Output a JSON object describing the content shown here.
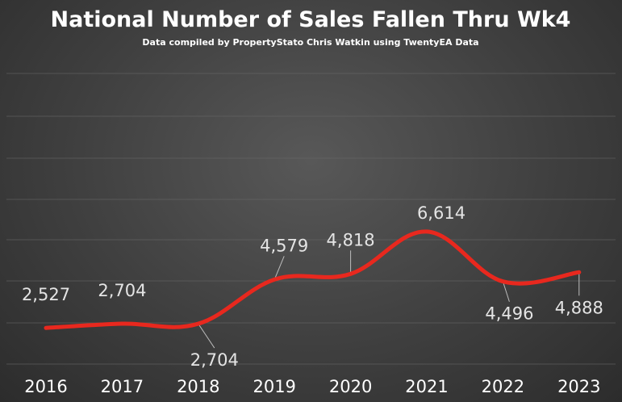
{
  "colors": {
    "line": "#e8281e",
    "text": "#ffffff",
    "label": "#e4e4e4"
  },
  "chart_data": {
    "type": "line",
    "title": "National Number of Sales Fallen Thru Wk4",
    "subtitle": "Data compiled by PropertyStato Chris Watkin using TwentyEA Data",
    "xlabel": "",
    "ylabel": "",
    "categories": [
      "2016",
      "2017",
      "2018",
      "2019",
      "2020",
      "2021",
      "2022",
      "2023"
    ],
    "series": [
      {
        "values": [
          2527,
          2704,
          2704,
          4579,
          4818,
          6614,
          4496,
          4888
        ],
        "data_labels": [
          "2,527",
          "2,704",
          "2,704",
          "4,579",
          "4,818",
          "6,614",
          "4,496",
          "4,888"
        ]
      }
    ],
    "grid": true,
    "legend": "none"
  }
}
